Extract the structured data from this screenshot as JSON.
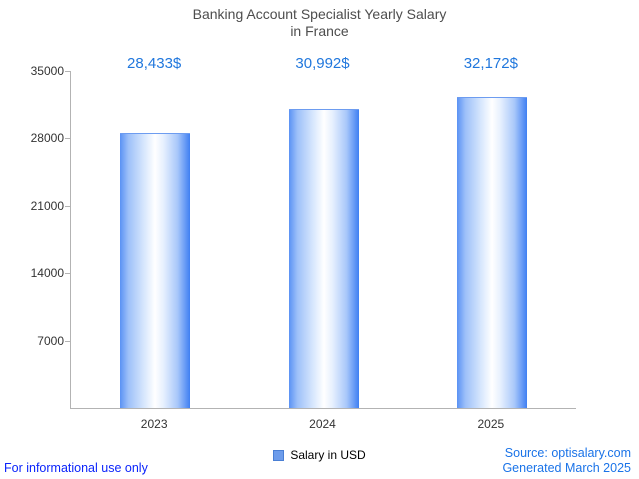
{
  "title": {
    "line1": "Banking Account Specialist Yearly Salary",
    "line2": "in France"
  },
  "chart_data": {
    "type": "bar",
    "categories": [
      "2023",
      "2024",
      "2025"
    ],
    "values": [
      28433,
      30992,
      32172
    ],
    "value_labels": [
      "28,433$",
      "30,992$",
      "32,172$"
    ],
    "title": "Banking Account Specialist Yearly Salary in France",
    "xlabel": "",
    "ylabel": "",
    "ylim": [
      0,
      35000
    ],
    "yticks": [
      7000,
      14000,
      21000,
      28000,
      35000
    ],
    "grid": false,
    "legend": {
      "position": "bottom",
      "entries": [
        "Salary in USD"
      ]
    },
    "series_name": "Salary in USD",
    "bar_color_edge": "#4a86f3",
    "bar_color_center": "#ffffff",
    "value_label_color": "#2077dd"
  },
  "legend": {
    "label": "Salary in USD"
  },
  "footer": {
    "left_note": "For informational use only",
    "source": "Source: optisalary.com",
    "generated": "Generated March 2025"
  }
}
